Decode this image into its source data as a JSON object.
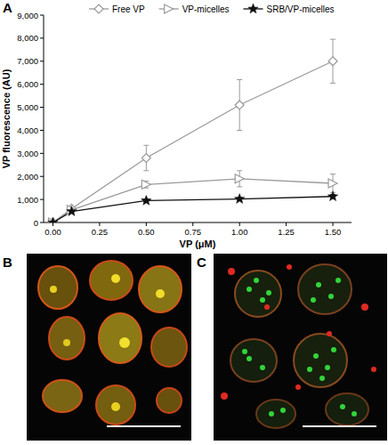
{
  "chart_data": {
    "type": "line",
    "panel_labels": [
      "A",
      "B",
      "C"
    ],
    "x_label": "VP (μM)",
    "y_label": "VP fluorescence (AU)",
    "x": [
      0,
      0.1,
      0.5,
      1.0,
      1.5
    ],
    "series": [
      {
        "name": "Free VP",
        "color": "#9a9a9a",
        "marker": "diamond",
        "values": [
          0,
          600,
          2800,
          5100,
          7000
        ],
        "errors": [
          0,
          50,
          550,
          1100,
          950
        ]
      },
      {
        "name": "VP-micelles",
        "color": "#9a9a9a",
        "marker": "triangle-right",
        "values": [
          0,
          550,
          1650,
          1900,
          1700
        ],
        "errors": [
          0,
          50,
          150,
          350,
          400
        ]
      },
      {
        "name": "SRB/VP-micelles",
        "color": "#111111",
        "marker": "star",
        "values": [
          0,
          480,
          950,
          1020,
          1130
        ],
        "errors": [
          0,
          30,
          50,
          60,
          80
        ]
      }
    ],
    "xlim": [
      -0.05,
      1.6
    ],
    "xticks": [
      {
        "value": 0,
        "label": "0.00"
      },
      {
        "value": 0.25,
        "label": "0.25"
      },
      {
        "value": 0.5,
        "label": "0.50"
      },
      {
        "value": 0.75,
        "label": "0.75"
      },
      {
        "value": 1.0,
        "label": "1.00"
      },
      {
        "value": 1.25,
        "label": "1.25"
      },
      {
        "value": 1.5,
        "label": "1.50"
      }
    ],
    "ylim": [
      0,
      9000
    ],
    "yticks": [
      0,
      {
        "value": 1000,
        "label": "1,000"
      },
      {
        "value": 2000,
        "label": "2,000"
      },
      {
        "value": 3000,
        "label": "3,000"
      },
      {
        "value": 4000,
        "label": "4,000"
      },
      {
        "value": 5000,
        "label": "5,000"
      },
      {
        "value": 6000,
        "label": "6,000"
      },
      {
        "value": 7000,
        "label": "7,000"
      },
      {
        "value": 8000,
        "label": "8,000"
      },
      {
        "value": 9000,
        "label": "9,000"
      }
    ],
    "grid": false,
    "legend": "top"
  }
}
